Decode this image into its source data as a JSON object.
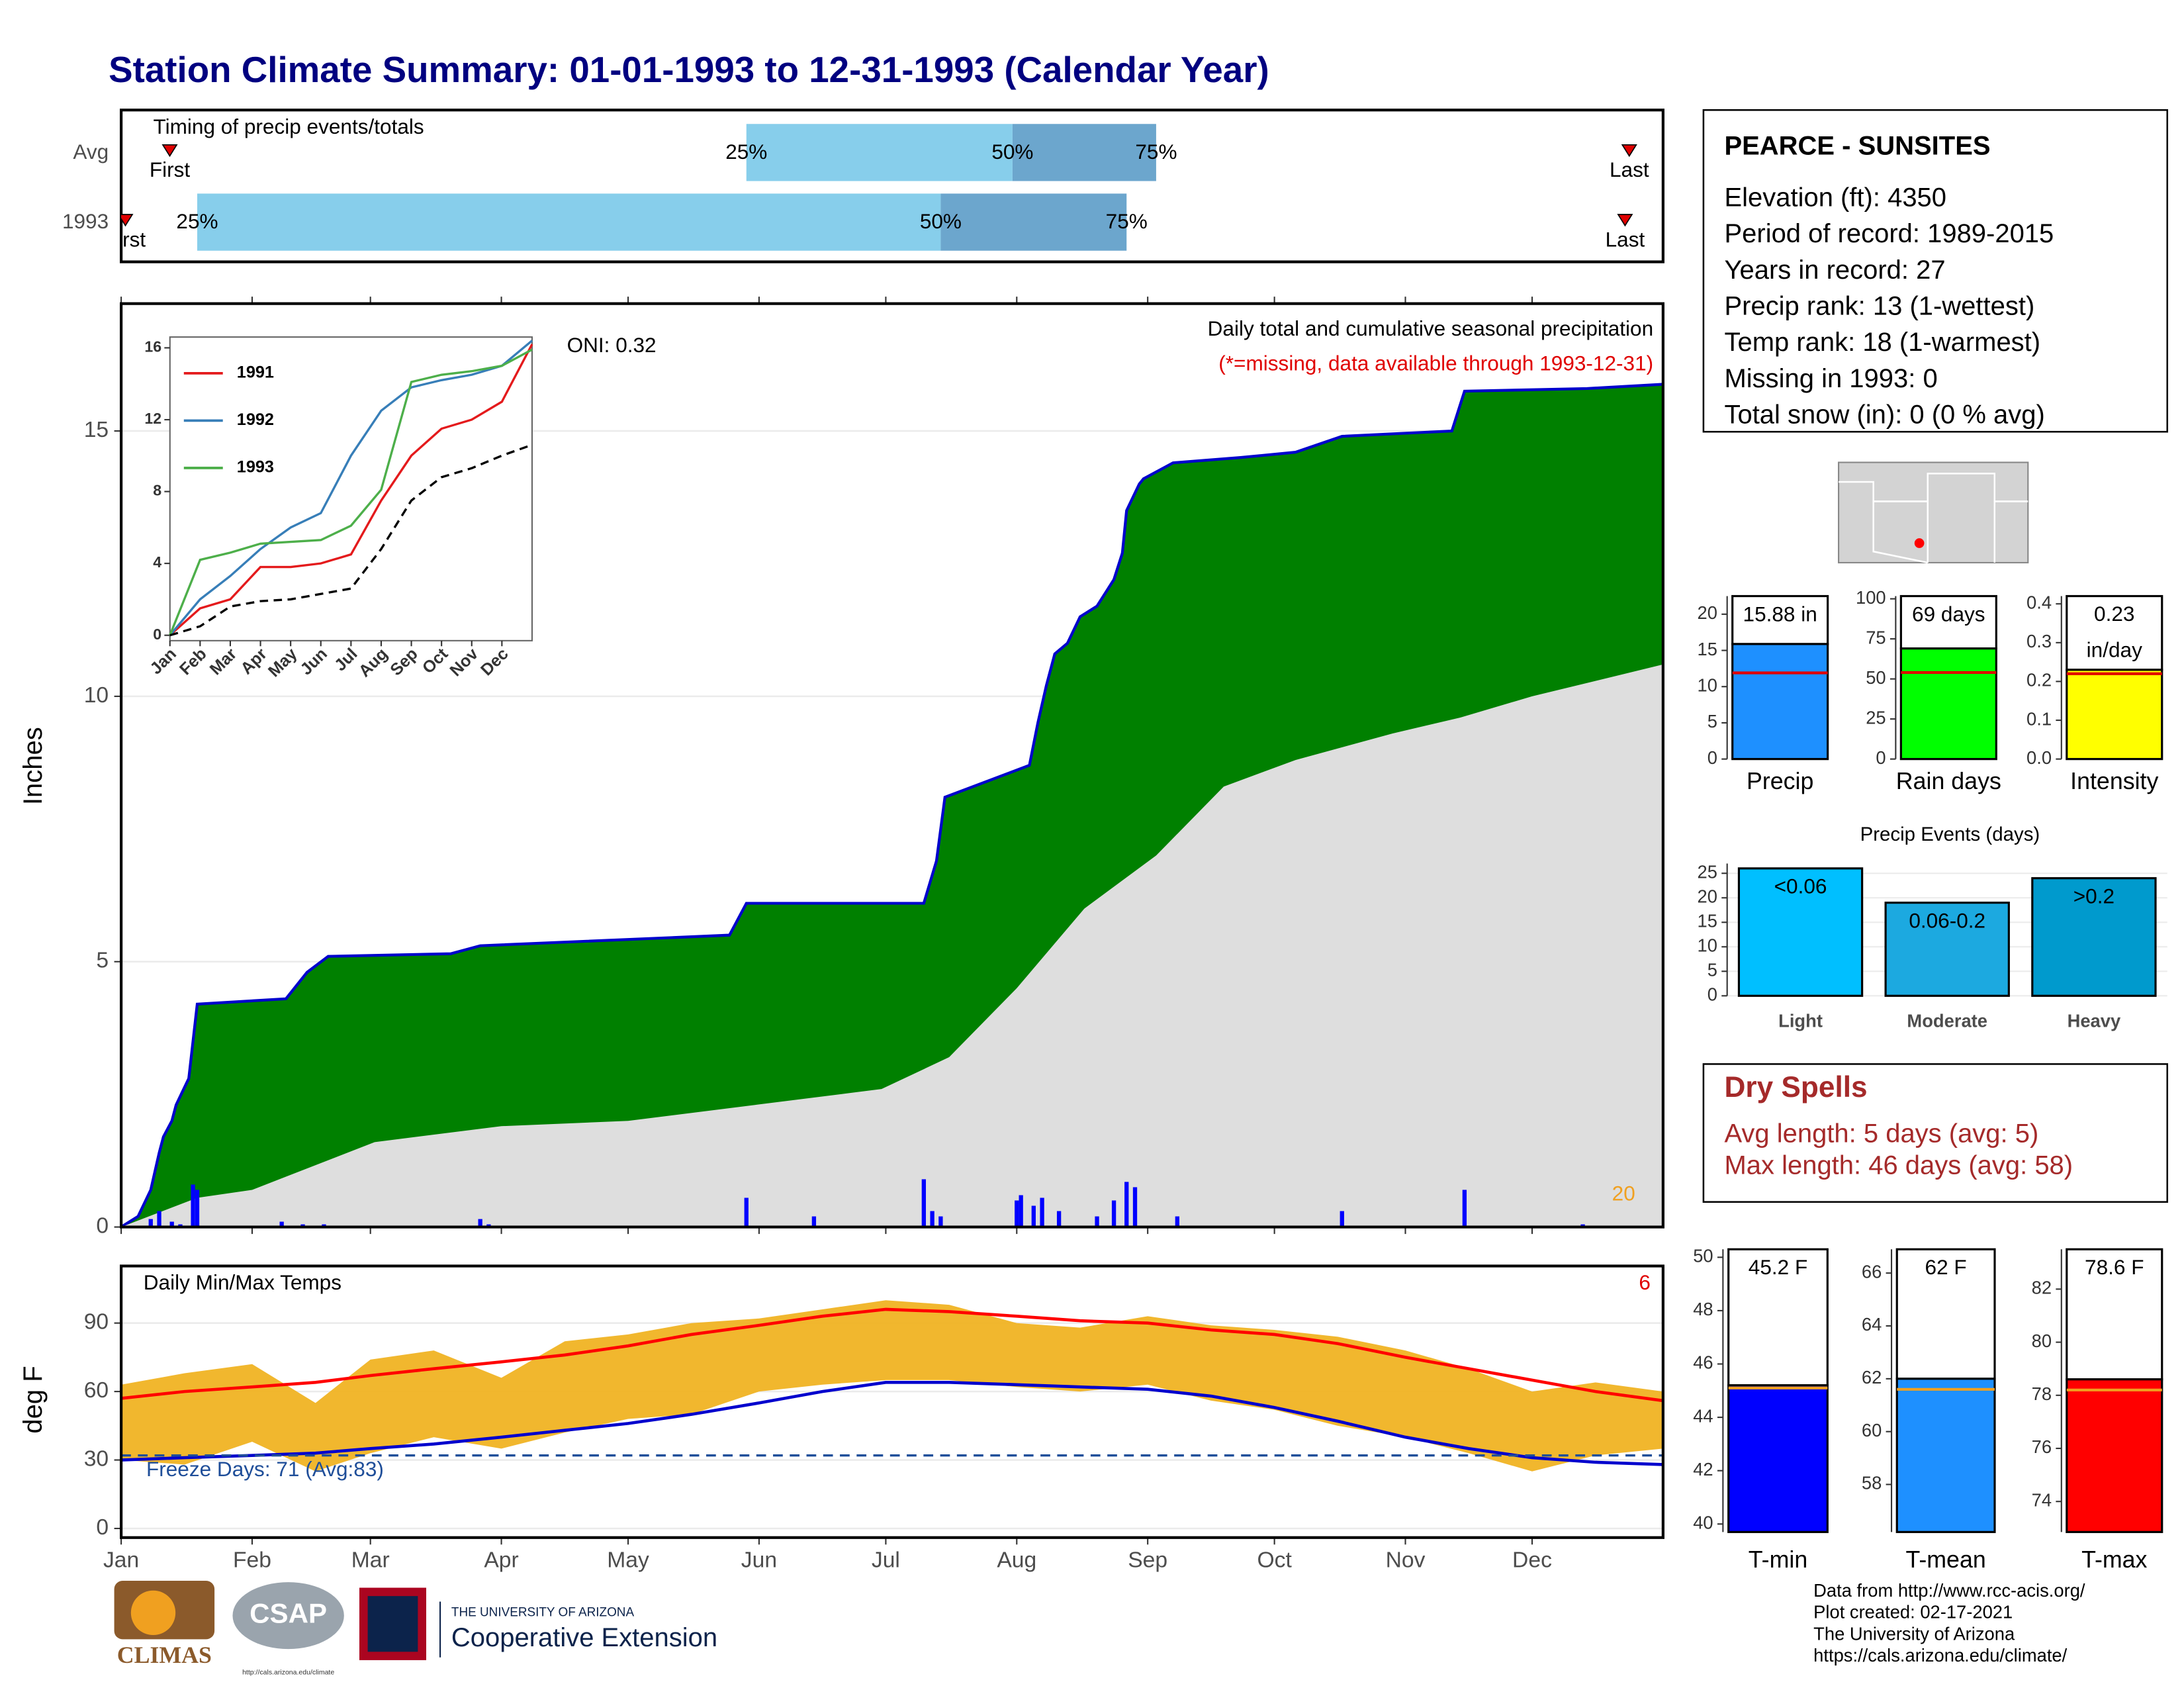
{
  "title": "Station Climate Summary: 01-01-1993 to 12-31-1993 (Calendar Year)",
  "chart_data": [
    {
      "type": "range",
      "title": "Timing of precip events/totals",
      "categories": [
        "Avg",
        "1993"
      ],
      "xlim": [
        0,
        365
      ],
      "colors": [
        "#87ceeb",
        "#6ca6cd"
      ],
      "marker_color": "#e00000",
      "series": [
        {
          "name": "First",
          "values": [
            11.5,
            1
          ]
        },
        {
          "name": "25%",
          "values": [
            148,
            18
          ]
        },
        {
          "name": "50%",
          "values": [
            211,
            194
          ]
        },
        {
          "name": "75%",
          "values": [
            245,
            238
          ]
        },
        {
          "name": "Last",
          "values": [
            357,
            356
          ]
        }
      ]
    },
    {
      "type": "area",
      "title": "Daily total and cumulative seasonal precipitation",
      "subtitle": "(*=missing, data available through 1993-12-31)",
      "annotation": "ONI: 0.32",
      "corner_label": "20",
      "y_label": "Inches",
      "xlim": [
        0,
        365
      ],
      "ylim": [
        0,
        17.4
      ],
      "yticks": [
        0,
        5,
        10,
        15
      ],
      "grid": true,
      "series": [
        {
          "color": "#008000",
          "line_color": "#0000cd",
          "x": [
            0,
            4,
            7,
            9,
            10,
            12,
            13,
            16,
            18,
            39,
            41,
            44,
            49,
            78,
            85,
            144,
            148,
            190,
            193,
            195,
            215,
            217,
            219,
            221,
            224,
            227,
            231,
            235,
            237,
            238,
            241,
            242,
            249,
            265,
            278,
            289,
            315,
            318,
            347,
            365
          ],
          "values": [
            0,
            0.2,
            0.7,
            1.4,
            1.7,
            2.0,
            2.3,
            2.8,
            4.2,
            4.3,
            4.5,
            4.8,
            5.1,
            5.15,
            5.3,
            5.5,
            6.1,
            6.1,
            6.9,
            8.1,
            8.7,
            9.5,
            10.2,
            10.8,
            11.0,
            11.5,
            11.7,
            12.2,
            12.7,
            13.5,
            14.0,
            14.1,
            14.4,
            14.5,
            14.6,
            14.9,
            15.0,
            15.75,
            15.8,
            15.88
          ]
        },
        {
          "color": "#dedede",
          "x": [
            0,
            18,
            31,
            60,
            90,
            120,
            150,
            180,
            196,
            212,
            228,
            245,
            261,
            278,
            301,
            317,
            334,
            365
          ],
          "values": [
            0,
            0.55,
            0.7,
            1.6,
            1.9,
            2.0,
            2.3,
            2.6,
            3.2,
            4.5,
            6.0,
            7.0,
            8.3,
            8.8,
            9.3,
            9.6,
            10.0,
            10.6
          ]
        }
      ],
      "daily": {
        "color": "#0000ff",
        "x": [
          7,
          9,
          12,
          14,
          17,
          18,
          38,
          43,
          48,
          85,
          87,
          148,
          164,
          190,
          192,
          194,
          212,
          213,
          216,
          218,
          222,
          231,
          235,
          238,
          240,
          250,
          289,
          318,
          346
        ],
        "values": [
          0.15,
          0.3,
          0.1,
          0.05,
          0.8,
          0.7,
          0.1,
          0.05,
          0.05,
          0.15,
          0.05,
          0.55,
          0.2,
          0.9,
          0.3,
          0.2,
          0.5,
          0.6,
          0.4,
          0.55,
          0.3,
          0.2,
          0.5,
          0.85,
          0.75,
          0.2,
          0.3,
          0.7,
          0.05
        ]
      }
    },
    {
      "type": "line",
      "xlim": [
        0,
        12
      ],
      "ylim": [
        -0.3,
        16.6
      ],
      "yticks": [
        0,
        4,
        8,
        12,
        16
      ],
      "xticks": [
        {
          "value": 0,
          "label": "Jan"
        },
        {
          "value": 1,
          "label": "Feb"
        },
        {
          "value": 2,
          "label": "Mar"
        },
        {
          "value": 3,
          "label": "Apr"
        },
        {
          "value": 4,
          "label": "May"
        },
        {
          "value": 5,
          "label": "Jun"
        },
        {
          "value": 6,
          "label": "Jul"
        },
        {
          "value": 7,
          "label": "Aug"
        },
        {
          "value": 8,
          "label": "Sep"
        },
        {
          "value": 9,
          "label": "Oct"
        },
        {
          "value": 10,
          "label": "Nov"
        },
        {
          "value": 11,
          "label": "Dec"
        }
      ],
      "x": [
        0,
        1,
        2,
        3,
        4,
        5,
        6,
        7,
        8,
        9,
        10,
        11,
        12
      ],
      "series": [
        {
          "name": "1991",
          "color": "#e41a1c",
          "values": [
            0,
            1.5,
            2.0,
            3.8,
            3.8,
            4.0,
            4.5,
            7.5,
            10,
            11.5,
            12,
            13,
            16.2
          ]
        },
        {
          "name": "1992",
          "color": "#377eb8",
          "values": [
            0,
            2.0,
            3.3,
            4.8,
            6.0,
            6.8,
            10,
            12.5,
            13.8,
            14.2,
            14.5,
            15,
            16.4
          ]
        },
        {
          "name": "1993",
          "color": "#4daf4a",
          "values": [
            0,
            4.2,
            4.6,
            5.1,
            5.2,
            5.3,
            6.1,
            8.1,
            14.1,
            14.5,
            14.7,
            15.0,
            15.9
          ]
        },
        {
          "color": "#000000",
          "dash": true,
          "values": [
            0,
            0.5,
            1.6,
            1.9,
            2.0,
            2.3,
            2.6,
            4.8,
            7.5,
            8.8,
            9.3,
            10.0,
            10.6
          ]
        }
      ]
    },
    {
      "type": "band",
      "title": "Daily Min/Max Temps",
      "corner_label": "6",
      "freeze_label": "Freeze Days: 71 (Avg:83)",
      "freeze_line": 32,
      "y_label": "deg F",
      "xlim": [
        0,
        365
      ],
      "ylim": [
        -4,
        115
      ],
      "yticks": [
        0,
        30,
        60,
        90
      ],
      "grid": true,
      "xticks": [
        {
          "value": 0,
          "label": "Jan"
        },
        {
          "value": 31,
          "label": "Feb"
        },
        {
          "value": 59,
          "label": "Mar"
        },
        {
          "value": 90,
          "label": "Apr"
        },
        {
          "value": 120,
          "label": "May"
        },
        {
          "value": 151,
          "label": "Jun"
        },
        {
          "value": 181,
          "label": "Jul"
        },
        {
          "value": 212,
          "label": "Aug"
        },
        {
          "value": 243,
          "label": "Sep"
        },
        {
          "value": 273,
          "label": "Oct"
        },
        {
          "value": 304,
          "label": "Nov"
        },
        {
          "value": 334,
          "label": "Dec"
        }
      ],
      "x": [
        0,
        15,
        31,
        46,
        59,
        74,
        90,
        105,
        120,
        135,
        151,
        166,
        181,
        196,
        212,
        227,
        243,
        258,
        273,
        288,
        304,
        319,
        334,
        349,
        365
      ],
      "daily_max": [
        63,
        68,
        72,
        55,
        74,
        78,
        66,
        82,
        85,
        90,
        92,
        96,
        100,
        98,
        90,
        88,
        93,
        89,
        87,
        84,
        78,
        70,
        60,
        64,
        60
      ],
      "daily_min": [
        30,
        28,
        38,
        25,
        33,
        40,
        35,
        42,
        48,
        50,
        60,
        63,
        65,
        65,
        62,
        60,
        63,
        56,
        52,
        45,
        40,
        33,
        25,
        32,
        35
      ],
      "band_color": "#f0b323",
      "series": [
        {
          "color": "#ff0000",
          "values": [
            57,
            60,
            62,
            64,
            67,
            70,
            73,
            76,
            80,
            85,
            89,
            93,
            96,
            95,
            93,
            91,
            90,
            87,
            85,
            81,
            75,
            70,
            65,
            60,
            56
          ]
        },
        {
          "color": "#0000cd",
          "values": [
            30,
            31,
            32,
            33,
            35,
            37,
            40,
            43,
            46,
            50,
            55,
            60,
            64,
            64,
            63,
            62,
            61,
            58,
            53,
            47,
            40,
            35,
            31,
            29,
            28
          ]
        }
      ]
    },
    {
      "type": "bar",
      "categories": [
        "Precip"
      ],
      "values": [
        15.88
      ],
      "value_labels": [
        "15.88 in"
      ],
      "avg": 11.9,
      "avg_color": "#e00000",
      "color": "#1e90ff",
      "ylim": [
        0,
        22.5
      ],
      "yticks": [
        0,
        5,
        10,
        15,
        20
      ]
    },
    {
      "type": "bar",
      "categories": [
        "Rain days"
      ],
      "values": [
        69
      ],
      "value_labels": [
        "69 days"
      ],
      "avg": 54,
      "avg_color": "#e00000",
      "color": "#00ff00",
      "ylim": [
        0,
        101.7
      ],
      "yticks": [
        0,
        25,
        50,
        75,
        100
      ]
    },
    {
      "type": "bar",
      "categories": [
        "Intensity"
      ],
      "values": [
        0.23
      ],
      "value_labels": [
        "0.23\nin/day"
      ],
      "avg": 0.22,
      "avg_color": "#e00000",
      "color": "#ffff00",
      "ylim": [
        0,
        0.42
      ],
      "yticks": [
        {
          "value": 0,
          "label": "0.0"
        },
        0.1,
        0.2,
        0.3,
        0.4
      ]
    },
    {
      "type": "bar",
      "title": "Precip Events (days)",
      "categories": [
        "Light",
        "Moderate",
        "Heavy"
      ],
      "values": [
        26,
        19,
        24
      ],
      "value_labels": [
        "<0.06",
        "0.06-0.2",
        ">0.2"
      ],
      "colors": [
        "#00bfff",
        "#1ca9e0",
        "#009acd"
      ],
      "ylim": [
        0,
        27
      ],
      "yticks": [
        0,
        5,
        10,
        15,
        20,
        25
      ],
      "grid": true
    },
    {
      "type": "bar",
      "categories": [
        "T-min"
      ],
      "values": [
        45.2
      ],
      "value_labels": [
        "45.2 F"
      ],
      "avg": 45.1,
      "avg_color": "#f0a020",
      "color": "#0000ff",
      "ylim": [
        39.7,
        50.3
      ],
      "yticks": [
        40,
        42,
        44,
        46,
        48,
        50
      ]
    },
    {
      "type": "bar",
      "categories": [
        "T-mean"
      ],
      "values": [
        62
      ],
      "value_labels": [
        "62 F"
      ],
      "avg": 61.6,
      "avg_color": "#f0a020",
      "color": "#1e90ff",
      "ylim": [
        56.2,
        66.9
      ],
      "yticks": [
        58,
        60,
        62,
        64,
        66
      ]
    },
    {
      "type": "bar",
      "categories": [
        "T-max"
      ],
      "values": [
        78.6
      ],
      "value_labels": [
        "78.6 F"
      ],
      "avg": 78.2,
      "avg_color": "#f0a020",
      "color": "#ff0000",
      "ylim": [
        72.85,
        83.5
      ],
      "yticks": [
        74,
        76,
        78,
        80,
        82
      ]
    }
  ],
  "station": {
    "name": "PEARCE - SUNSITES",
    "lines": [
      "Elevation (ft): 4350",
      "Period of record: 1989-2015",
      "Years in record: 27",
      "Precip rank: 13 (1-wettest)",
      "Temp rank: 18 (1-warmest)",
      "Missing in 1993: 0",
      "Total snow (in): 0 (0 % avg)"
    ]
  },
  "dry_spells": {
    "title": "Dry Spells",
    "lines": [
      "Avg length: 5 days (avg: 5)",
      "Max length: 46 days (avg: 58)"
    ]
  },
  "logos": {
    "climas": "CLIMAS",
    "csap": "CSAP",
    "csap_url": "http://cals.arizona.edu/climate",
    "university": "THE UNIVERSITY OF ARIZONA",
    "extension": "Cooperative Extension"
  },
  "credits": [
    "Data from http://www.rcc-acis.org/",
    "Plot created: 02-17-2021",
    "The University of Arizona",
    "https://cals.arizona.edu/climate/"
  ]
}
